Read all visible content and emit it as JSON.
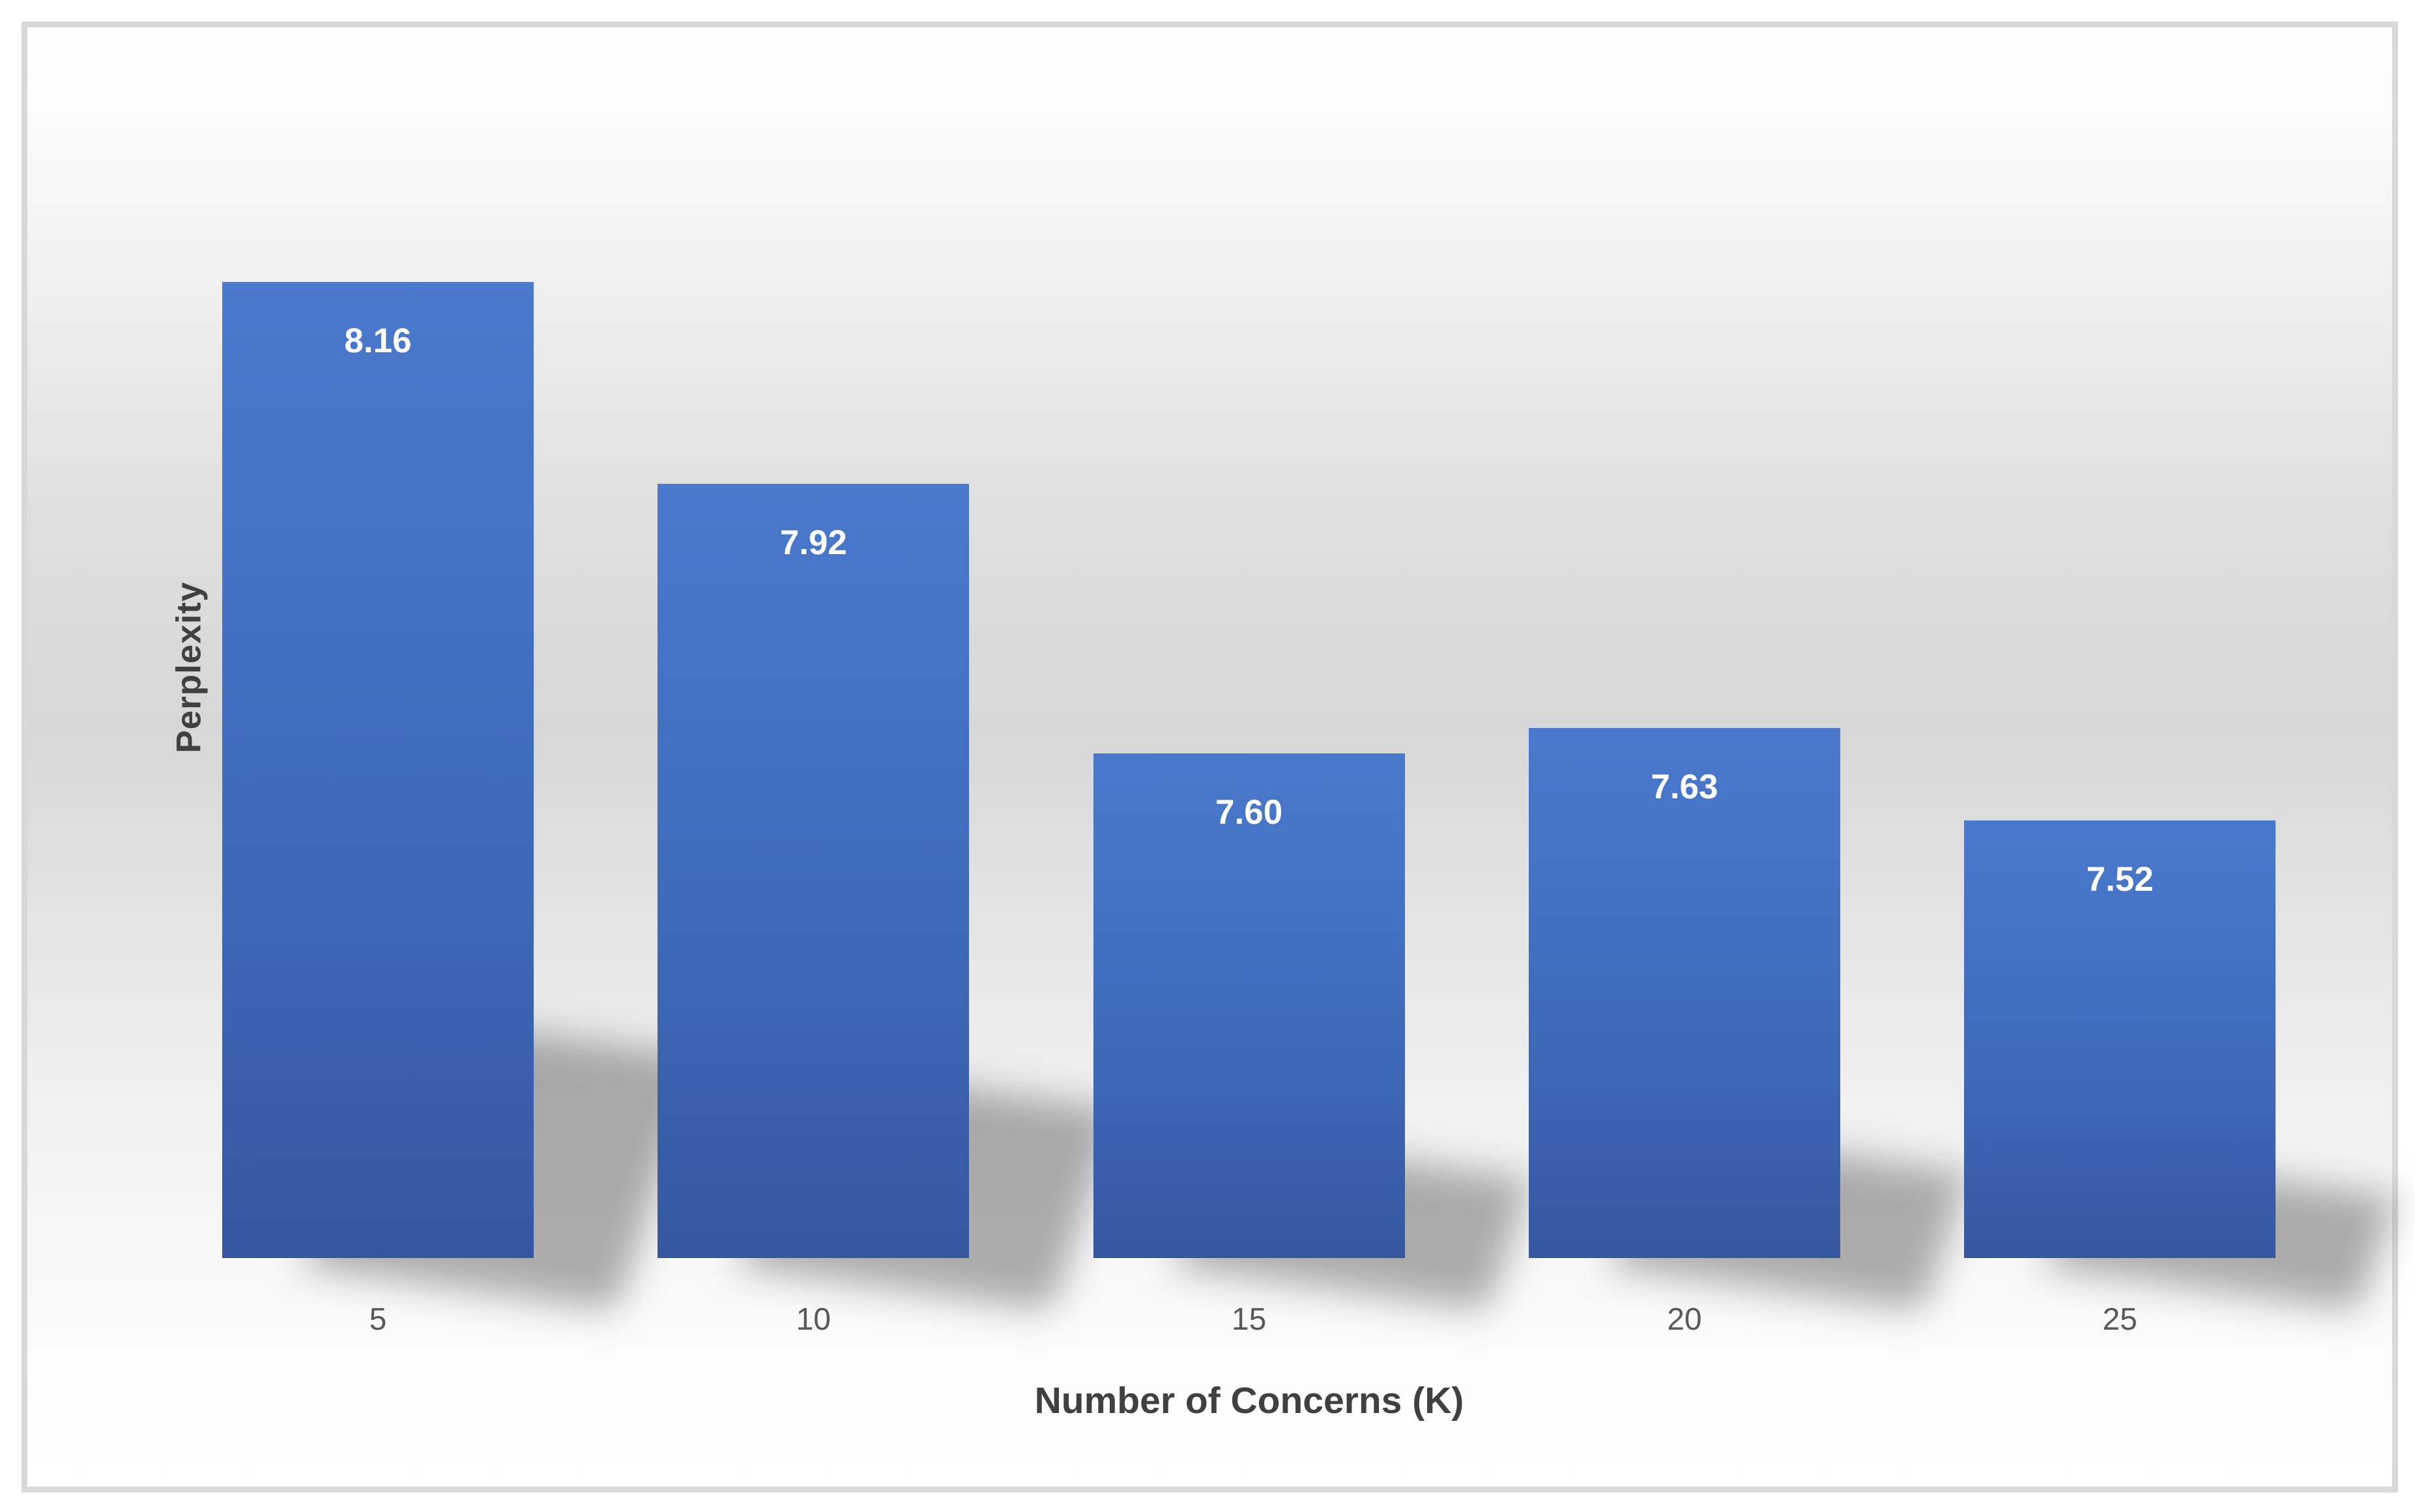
{
  "chart_data": {
    "type": "bar",
    "categories": [
      "5",
      "10",
      "15",
      "20",
      "25"
    ],
    "values": [
      8.16,
      7.92,
      7.6,
      7.63,
      7.52
    ],
    "data_labels": [
      "8.16",
      "7.92",
      "7.60",
      "7.63",
      "7.52"
    ],
    "title": "",
    "xlabel": "Number of Concerns (K)",
    "ylabel": "Perplexity",
    "ylim": [
      7.0,
      8.45
    ],
    "grid": false,
    "legend": false,
    "y_axis_ticks_visible": false,
    "colors": {
      "bar_top": "#4A79CD",
      "bar_main": "#4472C4",
      "bar_bottom": "#35579F",
      "data_label": "#FFFFFF",
      "tick_label": "#595959",
      "axis_title": "#404040",
      "frame_border": "#D9D9D9",
      "background_mid": "#D7D7D7"
    }
  }
}
